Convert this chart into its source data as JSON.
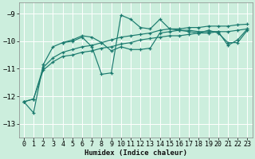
{
  "xlabel": "Humidex (Indice chaleur)",
  "bg_color": "#cceedd",
  "grid_color": "#ffffff",
  "line_color": "#1a7a6e",
  "xlim": [
    -0.5,
    23.5
  ],
  "ylim": [
    -13.5,
    -8.6
  ],
  "yticks": [
    -13,
    -12,
    -11,
    -10,
    -9
  ],
  "xticks": [
    0,
    1,
    2,
    3,
    4,
    5,
    6,
    7,
    8,
    9,
    10,
    11,
    12,
    13,
    14,
    15,
    16,
    17,
    18,
    19,
    20,
    21,
    22,
    23
  ],
  "series": [
    {
      "x": [
        0,
        1,
        2,
        3,
        4,
        5,
        6,
        7,
        8,
        9,
        10,
        11,
        12,
        13,
        14,
        15,
        16,
        17,
        18,
        19,
        20,
        21,
        22,
        23
      ],
      "y": [
        -12.2,
        -12.6,
        -10.85,
        -10.2,
        -10.05,
        -10.0,
        -9.85,
        -10.2,
        -11.2,
        -11.15,
        -9.05,
        -9.2,
        -9.5,
        -9.55,
        -9.2,
        -9.55,
        -9.6,
        -9.6,
        -9.65,
        -9.65,
        -9.65,
        -10.15,
        -9.95,
        -9.55
      ]
    },
    {
      "x": [
        4,
        5,
        6,
        7,
        8,
        9,
        10,
        11,
        12,
        13,
        14,
        15,
        16,
        17,
        18,
        19,
        20,
        21,
        22,
        23
      ],
      "y": [
        -10.05,
        -9.95,
        -9.8,
        -9.85,
        -10.05,
        -10.35,
        -10.2,
        -10.3,
        -10.3,
        -10.25,
        -9.7,
        -9.65,
        -9.6,
        -9.65,
        -9.7,
        -9.6,
        -9.7,
        -10.05,
        -10.05,
        -9.6
      ]
    },
    {
      "x": [
        0,
        1,
        2,
        3,
        4,
        5,
        6,
        7,
        8,
        9,
        10,
        11,
        12,
        13,
        14,
        15,
        16,
        17,
        18,
        19,
        20,
        21,
        22,
        23
      ],
      "y": [
        -12.2,
        -12.1,
        -10.95,
        -10.6,
        -10.4,
        -10.3,
        -10.2,
        -10.15,
        -10.05,
        -9.95,
        -9.85,
        -9.8,
        -9.75,
        -9.7,
        -9.6,
        -9.55,
        -9.55,
        -9.5,
        -9.5,
        -9.45,
        -9.45,
        -9.45,
        -9.4,
        -9.38
      ]
    },
    {
      "x": [
        0,
        1,
        2,
        3,
        4,
        5,
        6,
        7,
        8,
        9,
        10,
        11,
        12,
        13,
        14,
        15,
        16,
        17,
        18,
        19,
        20,
        21,
        22,
        23
      ],
      "y": [
        -12.2,
        -12.1,
        -11.05,
        -10.75,
        -10.55,
        -10.5,
        -10.4,
        -10.35,
        -10.25,
        -10.2,
        -10.1,
        -10.05,
        -9.95,
        -9.9,
        -9.85,
        -9.8,
        -9.8,
        -9.75,
        -9.7,
        -9.7,
        -9.65,
        -9.65,
        -9.6,
        -9.55
      ]
    }
  ]
}
